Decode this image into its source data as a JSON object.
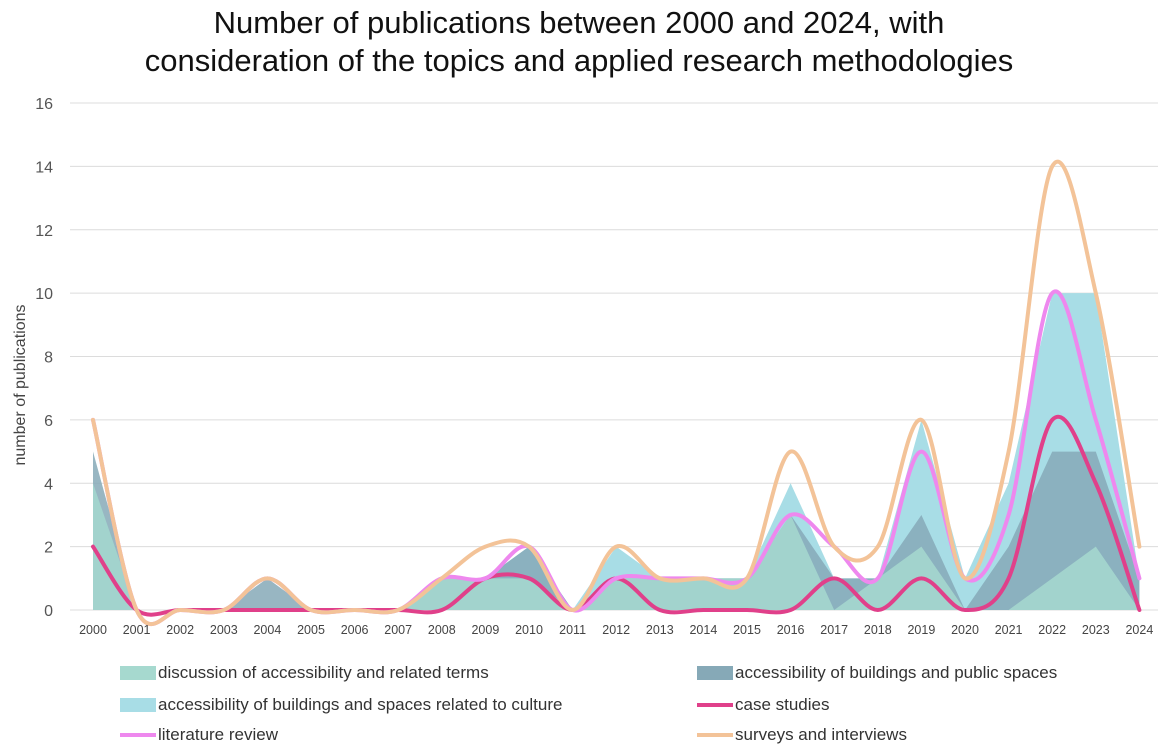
{
  "chart_data": {
    "type": "area",
    "title_lines": [
      "Number of publications between 2000 and 2024, with",
      "consideration of the topics and applied research methodologies"
    ],
    "xlabel": "",
    "ylabel": "number of publications",
    "ylim": [
      0,
      16
    ],
    "yticks": [
      0,
      2,
      4,
      6,
      8,
      10,
      12,
      14,
      16
    ],
    "grid": true,
    "legend_position": "bottom",
    "categories": [
      "2000",
      "2001",
      "2002",
      "2003",
      "2004",
      "2005",
      "2006",
      "2007",
      "2008",
      "2009",
      "2010",
      "2011",
      "2012",
      "2013",
      "2014",
      "2015",
      "2016",
      "2017",
      "2018",
      "2019",
      "2020",
      "2021",
      "2022",
      "2023",
      "2024"
    ],
    "area_series": [
      {
        "name": "accessibility of buildings and spaces related to culture",
        "color": "#a8dde6",
        "values": [
          4,
          0,
          0,
          0,
          0,
          0,
          0,
          0,
          1,
          1,
          2,
          0,
          2,
          1,
          1,
          1,
          4,
          1,
          1,
          6,
          1,
          4,
          10,
          10,
          1
        ]
      },
      {
        "name": "accessibility of buildings and public spaces",
        "color": "#86a9b7",
        "values": [
          5,
          0,
          0,
          0,
          1,
          0,
          0,
          0,
          1,
          1,
          2,
          0,
          1,
          1,
          1,
          1,
          3,
          1,
          1,
          3,
          0,
          2,
          5,
          5,
          1
        ]
      },
      {
        "name": "discussion of accessibility and related terms",
        "color": "#a6d9cf",
        "values": [
          4,
          0,
          0,
          0,
          0,
          0,
          0,
          0,
          1,
          1,
          1,
          0,
          1,
          1,
          1,
          1,
          3,
          0,
          1,
          2,
          0,
          0,
          1,
          2,
          0
        ]
      }
    ],
    "line_series": [
      {
        "name": "case studies",
        "color": "#e0408a",
        "values": [
          2,
          0,
          0,
          0,
          0,
          0,
          0,
          0,
          0,
          1,
          1,
          0,
          1,
          0,
          0,
          0,
          0,
          1,
          0,
          1,
          0,
          1,
          6,
          4,
          0
        ]
      },
      {
        "name": "literature review",
        "color": "#ee88ee",
        "values": [
          6,
          0,
          0,
          0,
          1,
          0,
          0,
          0,
          1,
          1,
          2,
          0,
          1,
          1,
          1,
          1,
          3,
          2,
          1,
          5,
          1,
          3,
          10,
          6,
          1
        ]
      },
      {
        "name": "surveys and interviews",
        "color": "#f3c398",
        "values": [
          6,
          0,
          0,
          0,
          1,
          0,
          0,
          0,
          1,
          2,
          2,
          0,
          2,
          1,
          1,
          1,
          5,
          2,
          2,
          6,
          1,
          5,
          14,
          10,
          2
        ]
      }
    ],
    "legend": [
      {
        "label": "discussion of accessibility and related terms",
        "kind": "area",
        "color": "#a6d9cf"
      },
      {
        "label": "accessibility of buildings and public spaces",
        "kind": "area",
        "color": "#86a9b7"
      },
      {
        "label": "accessibility of buildings and spaces related to culture",
        "kind": "area",
        "color": "#a8dde6"
      },
      {
        "label": "case studies",
        "kind": "line",
        "color": "#e0408a"
      },
      {
        "label": "literature review",
        "kind": "line",
        "color": "#ee88ee"
      },
      {
        "label": "surveys and interviews",
        "kind": "line",
        "color": "#f3c398"
      }
    ]
  }
}
